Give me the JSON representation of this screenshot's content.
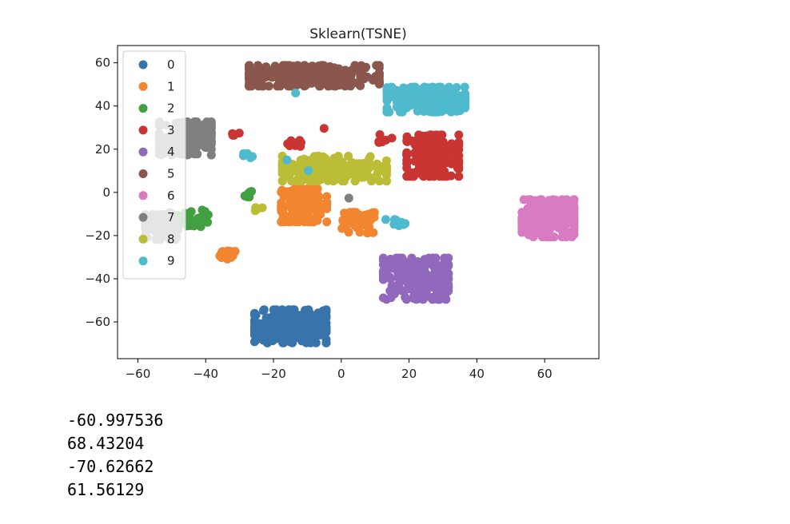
{
  "chart_data": {
    "type": "scatter",
    "title": "Sklearn(TSNE)",
    "xlabel": "",
    "ylabel": "",
    "xlim": [
      -66,
      76
    ],
    "ylim": [
      -77,
      68
    ],
    "xticks": [
      -60,
      -40,
      -20,
      0,
      20,
      40,
      60
    ],
    "yticks": [
      -60,
      -40,
      -20,
      0,
      20,
      40,
      60
    ],
    "tick_labels_x": [
      "−60",
      "−40",
      "−20",
      "0",
      "20",
      "40",
      "60"
    ],
    "tick_labels_y": [
      "−60",
      "−40",
      "−20",
      "0",
      "20",
      "40",
      "60"
    ],
    "grid": false,
    "legend": {
      "placement": "upper-left"
    },
    "series": [
      {
        "name": "0",
        "color": "#3873ac",
        "clusters": [
          {
            "cx": -15,
            "cy": -62,
            "sx": 11,
            "sy": 8,
            "n": 240
          }
        ]
      },
      {
        "name": "1",
        "color": "#f28530",
        "clusters": [
          {
            "cx": -11,
            "cy": -6,
            "sx": 7,
            "sy": 8,
            "n": 130
          },
          {
            "cx": 5,
            "cy": -14,
            "sx": 5,
            "sy": 5,
            "n": 50
          },
          {
            "cx": -34,
            "cy": -29,
            "sx": 3,
            "sy": 2,
            "n": 20
          }
        ]
      },
      {
        "name": "2",
        "color": "#42a042",
        "clusters": [
          {
            "cx": -45,
            "cy": -12,
            "sx": 6,
            "sy": 4,
            "n": 45
          },
          {
            "cx": -27,
            "cy": -1,
            "sx": 1.5,
            "sy": 1.5,
            "n": 8
          }
        ]
      },
      {
        "name": "3",
        "color": "#c93532",
        "clusters": [
          {
            "cx": 27,
            "cy": 17,
            "sx": 8,
            "sy": 10,
            "n": 200
          },
          {
            "cx": -14,
            "cy": 23,
            "sx": 3,
            "sy": 2,
            "n": 10
          },
          {
            "cx": 13,
            "cy": 25,
            "sx": 2,
            "sy": 2,
            "n": 6
          },
          {
            "cx": -32,
            "cy": 27,
            "sx": 2,
            "sy": 1,
            "n": 4
          },
          {
            "cx": -5,
            "cy": 30,
            "sx": 0.5,
            "sy": 0.5,
            "n": 1
          }
        ]
      },
      {
        "name": "4",
        "color": "#9069bd",
        "clusters": [
          {
            "cx": 22,
            "cy": -40,
            "sx": 10,
            "sy": 10,
            "n": 200
          }
        ]
      },
      {
        "name": "5",
        "color": "#8b564b",
        "clusters": [
          {
            "cx": -8,
            "cy": 54,
            "sx": 20,
            "sy": 5,
            "n": 240
          }
        ]
      },
      {
        "name": "6",
        "color": "#d97bc2",
        "clusters": [
          {
            "cx": 61,
            "cy": -12,
            "sx": 8,
            "sy": 9,
            "n": 260
          }
        ]
      },
      {
        "name": "7",
        "color": "#7f7f7f",
        "clusters": [
          {
            "cx": -46,
            "cy": 25,
            "sx": 8,
            "sy": 8,
            "n": 170
          },
          {
            "cx": -53,
            "cy": -16,
            "sx": 5,
            "sy": 6,
            "n": 80
          },
          {
            "cx": 2,
            "cy": -3,
            "sx": 0.5,
            "sy": 0.5,
            "n": 1
          }
        ]
      },
      {
        "name": "8",
        "color": "#bcbd36",
        "clusters": [
          {
            "cx": -2,
            "cy": 11,
            "sx": 16,
            "sy": 6,
            "n": 230
          },
          {
            "cx": -24,
            "cy": -8,
            "sx": 2,
            "sy": 1,
            "n": 4
          }
        ]
      },
      {
        "name": "9",
        "color": "#4fbacd",
        "clusters": [
          {
            "cx": 25,
            "cy": 43,
            "sx": 12,
            "sy": 6,
            "n": 210
          },
          {
            "cx": 16,
            "cy": -14,
            "sx": 3,
            "sy": 1.5,
            "n": 14
          },
          {
            "cx": -27,
            "cy": 17,
            "sx": 2,
            "sy": 1,
            "n": 6
          },
          {
            "cx": -13,
            "cy": 46,
            "sx": 0.5,
            "sy": 0.5,
            "n": 1
          },
          {
            "cx": -16,
            "cy": 15,
            "sx": 0.5,
            "sy": 0.5,
            "n": 1
          },
          {
            "cx": -10,
            "cy": 10,
            "sx": 0.5,
            "sy": 0.5,
            "n": 1
          }
        ]
      }
    ]
  },
  "outputs": [
    "-60.997536",
    "68.43204",
    "-70.62662",
    "61.56129"
  ]
}
